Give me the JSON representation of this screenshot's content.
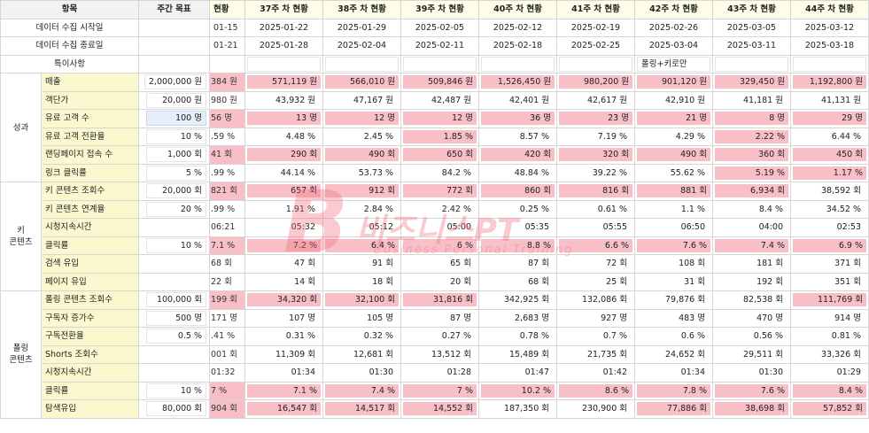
{
  "header": {
    "item": "항목",
    "target": "주간 목표",
    "partial_col": "현황",
    "weeks": [
      "37주 차 현황",
      "38주 차 현황",
      "39주 차 현황",
      "40주 차 현황",
      "41주 차 현황",
      "42주 차 현황",
      "43주 차 현황",
      "44주 차 현황"
    ]
  },
  "info_rows": [
    {
      "label": "데이터 수집 시작일",
      "partial": "01-15",
      "values": [
        "2025-01-22",
        "2025-01-29",
        "2025-02-05",
        "2025-02-12",
        "2025-02-19",
        "2025-02-26",
        "2025-03-05",
        "2025-03-12"
      ]
    },
    {
      "label": "데이터 수집 종료일",
      "partial": "01-21",
      "values": [
        "2025-01-28",
        "2025-02-04",
        "2025-02-11",
        "2025-02-18",
        "2025-02-25",
        "2025-03-04",
        "2025-03-11",
        "2025-03-18"
      ]
    },
    {
      "label": "특이사항",
      "partial": "",
      "values": [
        "",
        "",
        "",
        "",
        "",
        "폴링+키로만",
        "",
        ""
      ]
    }
  ],
  "sections": [
    {
      "name": "성과",
      "rows": [
        {
          "metric": "매출",
          "target": "2,000,000 원",
          "partial": "384 원",
          "values": [
            "571,119 원",
            "566,010 원",
            "509,846 원",
            "1,526,450 원",
            "980,200 원",
            "901,120 원",
            "329,450 원",
            "1,192,800 원"
          ],
          "hl": [
            1,
            1,
            1,
            1,
            1,
            1,
            1,
            1
          ]
        },
        {
          "metric": "객단가",
          "target": "20,000 원",
          "partial": "980 원",
          "values": [
            "43,932 원",
            "47,167 원",
            "42,487 원",
            "42,401 원",
            "42,617 원",
            "42,910 원",
            "41,181 원",
            "41,131 원"
          ],
          "hl": [
            0,
            0,
            0,
            0,
            0,
            0,
            0,
            0
          ]
        },
        {
          "metric": "유료 고객 수",
          "target": "100 명",
          "partial": "56 명",
          "values": [
            "13 명",
            "12 명",
            "12 명",
            "36 명",
            "23 명",
            "21 명",
            "8 명",
            "29 명"
          ],
          "hl": [
            1,
            1,
            1,
            1,
            1,
            1,
            1,
            1
          ]
        },
        {
          "metric": "유료 고객 전환율",
          "target": "10 %",
          "partial": ".59 %",
          "values": [
            "4.48 %",
            "2.45 %",
            "1.85 %",
            "8.57 %",
            "7.19 %",
            "4.29 %",
            "2.22 %",
            "6.44 %"
          ],
          "hl": [
            0,
            0,
            1,
            0,
            0,
            0,
            1,
            0
          ]
        },
        {
          "metric": "랜딩페이지 접속 수",
          "target": "1,000 회",
          "partial": "41 회",
          "values": [
            "290 회",
            "490 회",
            "650 회",
            "420 회",
            "320 회",
            "490 회",
            "360 회",
            "450 회"
          ],
          "hl": [
            1,
            1,
            1,
            1,
            1,
            1,
            1,
            1
          ]
        },
        {
          "metric": "링크 클릭률",
          "target": "5 %",
          "partial": ".99 %",
          "values": [
            "44.14 %",
            "53.73 %",
            "84.2 %",
            "48.84 %",
            "39.22 %",
            "55.62 %",
            "5.19 %",
            "1.17 %"
          ],
          "hl": [
            0,
            0,
            0,
            0,
            0,
            0,
            1,
            1
          ]
        }
      ]
    },
    {
      "name": "키\n콘텐츠",
      "rows": [
        {
          "metric": "키 콘텐츠 조회수",
          "target": "20,000 회",
          "partial": "821 회",
          "values": [
            "657 회",
            "912 회",
            "772 회",
            "860 회",
            "816 회",
            "881 회",
            "6,934 회",
            "38,592 회"
          ],
          "hl": [
            1,
            1,
            1,
            1,
            1,
            1,
            1,
            0
          ]
        },
        {
          "metric": "키 콘텐츠 연계율",
          "target": "20 %",
          "partial": ".99 %",
          "values": [
            "1.91 %",
            "2.84 %",
            "2.42 %",
            "0.25 %",
            "0.61 %",
            "1.1 %",
            "8.4 %",
            "34.52 %"
          ],
          "hl": [
            0,
            0,
            0,
            0,
            0,
            0,
            0,
            0
          ]
        },
        {
          "metric": "시청지속시간",
          "target": "",
          "partial": "06:21",
          "values": [
            "05:32",
            "05:12",
            "05:00",
            "05:35",
            "05:55",
            "06:50",
            "04:00",
            "02:53"
          ],
          "hl": [
            0,
            0,
            0,
            0,
            0,
            0,
            0,
            0
          ]
        },
        {
          "metric": "클릭률",
          "target": "10 %",
          "partial": "7.1 %",
          "values": [
            "7.2 %",
            "6.4 %",
            "6 %",
            "8.8 %",
            "6.6 %",
            "7.6 %",
            "7.4 %",
            "6.9 %"
          ],
          "hl": [
            1,
            1,
            1,
            1,
            1,
            1,
            1,
            1
          ]
        },
        {
          "metric": "검색 유입",
          "target": "",
          "partial": "68 회",
          "values": [
            "47 회",
            "91 회",
            "65 회",
            "87 회",
            "72 회",
            "108 회",
            "181 회",
            "371 회"
          ],
          "hl": [
            0,
            0,
            0,
            0,
            0,
            0,
            0,
            0
          ]
        },
        {
          "metric": "페이지 유입",
          "target": "",
          "partial": "22 회",
          "values": [
            "14 회",
            "18 회",
            "20 회",
            "68 회",
            "25 회",
            "31 회",
            "192 회",
            "351 회"
          ],
          "hl": [
            0,
            0,
            0,
            0,
            0,
            0,
            0,
            0
          ]
        }
      ]
    },
    {
      "name": "폴링\n콘텐츠",
      "rows": [
        {
          "metric": "폴링 콘텐츠 조회수",
          "target": "100,000 회",
          "partial": "199 회",
          "values": [
            "34,320 회",
            "32,100 회",
            "31,816 회",
            "342,925 회",
            "132,086 회",
            "79,876 회",
            "82,538 회",
            "111,769 회"
          ],
          "hl": [
            1,
            1,
            1,
            0,
            0,
            0,
            0,
            1
          ]
        },
        {
          "metric": "구독자 증가수",
          "target": "500 명",
          "partial": "171 명",
          "values": [
            "107 명",
            "105 명",
            "87 명",
            "2,683 명",
            "927 명",
            "483 명",
            "470 명",
            "914 명"
          ],
          "hl": [
            0,
            0,
            0,
            0,
            0,
            0,
            0,
            0
          ]
        },
        {
          "metric": "구독전환율",
          "target": "0.5 %",
          "partial": ".41 %",
          "values": [
            "0.31 %",
            "0.32 %",
            "0.27 %",
            "0.78 %",
            "0.7 %",
            "0.6 %",
            "0.56 %",
            "0.81 %"
          ],
          "hl": [
            0,
            0,
            0,
            0,
            0,
            0,
            0,
            0
          ]
        },
        {
          "metric": "Shorts 조회수",
          "target": "",
          "partial": "001 회",
          "values": [
            "11,309 회",
            "12,681 회",
            "13,512 회",
            "15,489 회",
            "21,735 회",
            "24,652 회",
            "29,511 회",
            "33,326 회"
          ],
          "hl": [
            0,
            0,
            0,
            0,
            0,
            0,
            0,
            0
          ]
        },
        {
          "metric": "시청지속시간",
          "target": "",
          "partial": "01:32",
          "values": [
            "01:34",
            "01:30",
            "01:28",
            "01:47",
            "01:42",
            "01:34",
            "01:30",
            "01:29"
          ],
          "hl": [
            0,
            0,
            0,
            0,
            0,
            0,
            0,
            0
          ]
        },
        {
          "metric": "클릭률",
          "target": "10 %",
          "partial": "7 %",
          "values": [
            "7.1 %",
            "7.4 %",
            "7 %",
            "10.2 %",
            "8.6 %",
            "7.8 %",
            "7.6 %",
            "8.4 %"
          ],
          "hl": [
            1,
            1,
            1,
            1,
            1,
            1,
            1,
            1
          ]
        },
        {
          "metric": "탐색유입",
          "target": "80,000 회",
          "partial": "904 회",
          "values": [
            "16,547 회",
            "14,517 회",
            "14,552 회",
            "187,350 회",
            "230,900 회",
            "77,886 회",
            "38,698 회",
            "57,852 회"
          ],
          "hl": [
            1,
            1,
            1,
            0,
            0,
            1,
            1,
            1
          ]
        }
      ]
    }
  ],
  "watermark": {
    "big": "B",
    "text": "비즈니스PT",
    "sub": "Business Personal Training"
  }
}
